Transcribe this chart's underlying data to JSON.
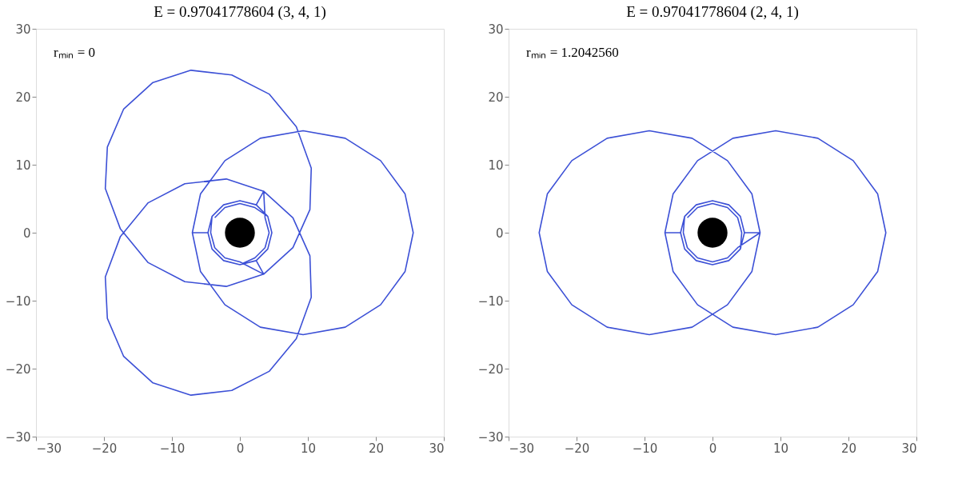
{
  "chart_data": [
    {
      "type": "line",
      "title": "E = 0.97041778604     (3, 4, 1)",
      "annotations": [
        "rₘᵢₙ = 0"
      ],
      "xlim": [
        -30,
        30
      ],
      "ylim": [
        -30,
        30
      ],
      "xticks": [
        -30,
        -20,
        -10,
        0,
        10,
        20,
        30
      ],
      "yticks": [
        -30,
        -20,
        -10,
        0,
        10,
        20,
        30
      ],
      "grid": false,
      "legend": false,
      "marker": "none",
      "line_style": "solid",
      "series": [
        {
          "color": "#3c50d6",
          "x": [
            -7,
            -5.8,
            -2.2,
            3,
            9.3,
            15.5,
            20.7,
            24.3,
            25.5,
            24.3,
            20.7,
            15.5,
            9.3,
            3,
            -2.2,
            -5.8,
            -7,
            -4.7,
            -4.1,
            -2.4,
            0,
            2.4,
            4.1,
            4.7,
            4.1,
            2.4,
            0,
            -2.4,
            -4.1,
            -4.3,
            -3.7,
            -2.2,
            0,
            3.5,
            7.8,
            10.3,
            10.5,
            8.3,
            4.3,
            -1.2,
            -7.2,
            -12.8,
            -17.1,
            -19.5,
            -19.8,
            -17.6,
            -13.5,
            -8.1,
            -2,
            3.5,
            2.4,
            4.1,
            4.7,
            4.1,
            2.4,
            0,
            -2.4,
            -4.1,
            -4.7,
            -4.1,
            -2.4,
            0,
            2.2,
            3.7,
            4.3,
            3.7,
            3.5,
            -2,
            -8.1,
            -13.5,
            -17.6,
            -19.8,
            -19.5,
            -17.1,
            -12.8,
            -7.2,
            -1.2,
            4.3,
            8.3,
            10.5,
            10.3,
            7.8,
            3.5,
            2.4,
            0,
            -2.4,
            -4.1,
            -4.7,
            -4.1,
            -2.4,
            0,
            2.4,
            4.1,
            4.7,
            4.1,
            2.2,
            0,
            -2.2,
            -3.7
          ],
          "values": [
            0,
            -5.7,
            -10.6,
            -13.9,
            -15,
            -13.9,
            -10.6,
            -5.7,
            0,
            5.7,
            10.6,
            13.9,
            15,
            13.9,
            10.6,
            5.7,
            0,
            0,
            -2.4,
            -4.1,
            -4.7,
            -4.1,
            -2.4,
            0,
            2.4,
            4.1,
            4.7,
            4.1,
            2.4,
            0,
            -2.2,
            -3.7,
            -4.3,
            -6.1,
            -2.2,
            3.4,
            9.5,
            15.6,
            20.4,
            23.2,
            23.9,
            22.1,
            18.2,
            12.6,
            6.5,
            0.6,
            -4.4,
            -7.2,
            -7.9,
            -6.1,
            -4.1,
            -2.4,
            0,
            2.4,
            4.1,
            4.7,
            4.1,
            2.4,
            0,
            -2.4,
            -4.1,
            -4.7,
            -3.7,
            -2.2,
            0,
            2.2,
            6.1,
            7.9,
            7.2,
            4.4,
            -0.6,
            -6.5,
            -12.6,
            -18.2,
            -22.1,
            -23.9,
            -23.2,
            -20.4,
            -15.6,
            -9.5,
            -3.4,
            2.2,
            6.1,
            4.1,
            4.7,
            4.1,
            2.4,
            0,
            -2.4,
            -4.1,
            -4.7,
            -4.1,
            -2.4,
            0,
            2.4,
            3.7,
            4.3,
            3.7,
            2.2
          ]
        }
      ]
    },
    {
      "type": "line",
      "title": "E = 0.97041778604     (2, 4, 1)",
      "annotations": [
        "rₘᵢₙ = 1.2042560"
      ],
      "xlim": [
        -30,
        30
      ],
      "ylim": [
        -30,
        30
      ],
      "xticks": [
        -30,
        -20,
        -10,
        0,
        10,
        20,
        30
      ],
      "yticks": [
        -30,
        -20,
        -10,
        0,
        10,
        20,
        30
      ],
      "grid": false,
      "legend": false,
      "marker": "none",
      "line_style": "solid",
      "series": [
        {
          "color": "#3c50d6",
          "x": [
            -7,
            -5.8,
            -2.2,
            3,
            9.3,
            15.5,
            20.7,
            24.3,
            25.5,
            24.3,
            20.7,
            15.5,
            9.3,
            3,
            -2.2,
            -5.8,
            -7,
            -4.7,
            -4.1,
            -2.4,
            0,
            2.4,
            4.1,
            4.7,
            4.1,
            2.4,
            0,
            -2.4,
            -4.1,
            -4.3,
            -3.7,
            -2.2,
            0,
            2.2,
            3.7,
            7,
            5.8,
            2.2,
            -3,
            -9.3,
            -15.5,
            -20.7,
            -24.3,
            -25.5,
            -24.3,
            -20.7,
            -15.5,
            -9.3,
            -3,
            2.2,
            5.8,
            7,
            4.7,
            4.1,
            2.4,
            0,
            -2.4,
            -4.1,
            -4.7,
            -4.1,
            -2.4,
            0,
            2.4,
            4.1,
            4.3,
            3.7,
            2.2,
            0,
            -2.2,
            -3.7
          ],
          "values": [
            0,
            -5.7,
            -10.6,
            -13.9,
            -15,
            -13.9,
            -10.6,
            -5.7,
            0,
            5.7,
            10.6,
            13.9,
            15,
            13.9,
            10.6,
            5.7,
            0,
            0,
            -2.4,
            -4.1,
            -4.7,
            -4.1,
            -2.4,
            0,
            2.4,
            4.1,
            4.7,
            4.1,
            2.4,
            0,
            -2.2,
            -3.7,
            -4.3,
            -3.7,
            -2.2,
            0,
            5.7,
            10.6,
            13.9,
            15,
            13.9,
            10.6,
            5.7,
            0,
            -5.7,
            -10.6,
            -13.9,
            -15,
            -13.9,
            -10.6,
            -5.7,
            0,
            0,
            2.4,
            4.1,
            4.7,
            4.1,
            2.4,
            0,
            -2.4,
            -4.1,
            -4.7,
            -4.1,
            -2.4,
            0,
            2.2,
            3.7,
            4.3,
            3.7,
            2.2
          ]
        }
      ]
    }
  ]
}
